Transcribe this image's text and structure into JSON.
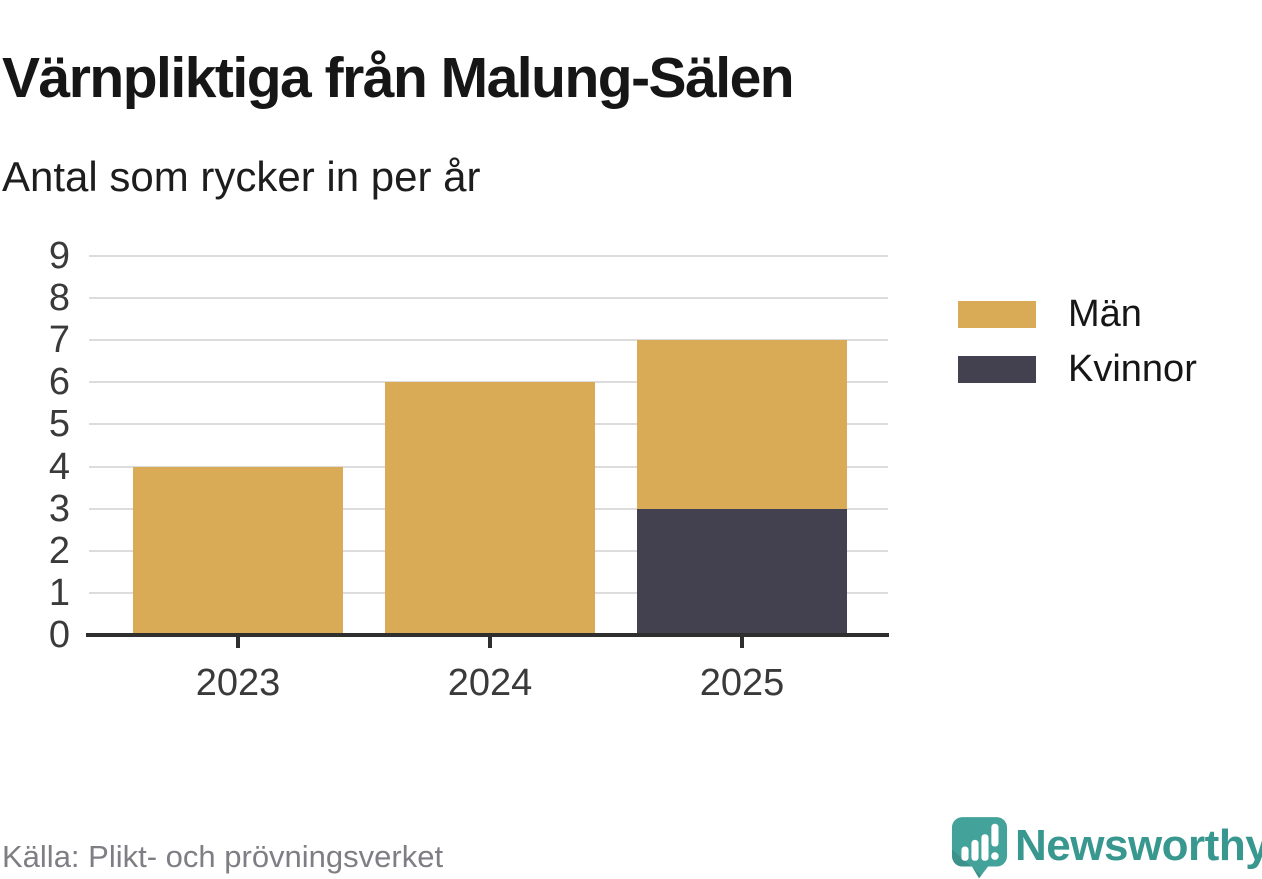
{
  "header": {
    "title": "Värnpliktiga från Malung-Sälen",
    "subtitle": "Antal som rycker in per år"
  },
  "chart_data": {
    "type": "bar",
    "stacked": true,
    "title": "Värnpliktiga från Malung-Sälen",
    "subtitle": "Antal som rycker in per år",
    "categories": [
      "2023",
      "2024",
      "2025"
    ],
    "series": [
      {
        "name": "Män",
        "color": "#d9ab57",
        "values": [
          4,
          6,
          4
        ]
      },
      {
        "name": "Kvinnor",
        "color": "#434050",
        "values": [
          0,
          0,
          3
        ]
      }
    ],
    "stack_bottom_to_top": [
      "Kvinnor",
      "Män"
    ],
    "totals": [
      4,
      6,
      7
    ],
    "xlabel": "",
    "ylabel": "",
    "ylim": [
      0,
      9
    ],
    "yticks": [
      0,
      1,
      2,
      3,
      4,
      5,
      6,
      7,
      8,
      9
    ],
    "grid": true,
    "legend_position": "right",
    "colors": {
      "gridline": "#dcdcdc",
      "axis": "#2f2f2f",
      "tick_text": "#3a3a3a"
    }
  },
  "footer": {
    "source": "Källa: Plikt- och prövningsverket",
    "brand": "Newsworthy",
    "brand_color": "#38978f"
  }
}
